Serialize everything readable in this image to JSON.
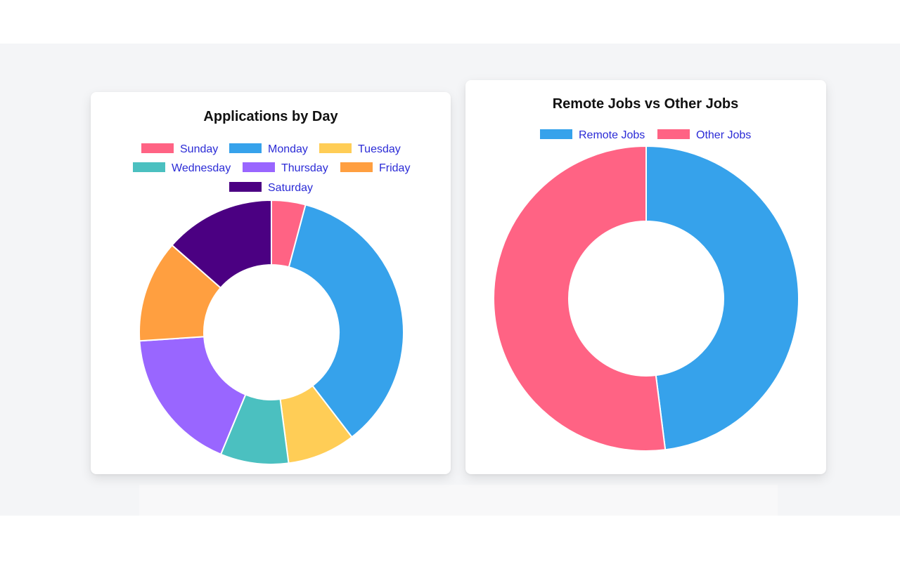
{
  "charts": [
    {
      "title": "Applications by Day",
      "legend": [
        {
          "label": "Sunday",
          "color": "#ff6384"
        },
        {
          "label": "Monday",
          "color": "#36a2eb"
        },
        {
          "label": "Tuesday",
          "color": "#ffcd56"
        },
        {
          "label": "Wednesday",
          "color": "#4bc0c0"
        },
        {
          "label": "Thursday",
          "color": "#9966ff"
        },
        {
          "label": "Friday",
          "color": "#ff9f40"
        },
        {
          "label": "Saturday",
          "color": "#4b0082"
        }
      ]
    },
    {
      "title": "Remote Jobs vs Other Jobs",
      "legend": [
        {
          "label": "Remote Jobs",
          "color": "#36a2eb"
        },
        {
          "label": "Other Jobs",
          "color": "#ff6384"
        }
      ]
    }
  ],
  "chart_data": [
    {
      "type": "pie",
      "doughnut": true,
      "title": "Applications by Day",
      "categories": [
        "Sunday",
        "Monday",
        "Tuesday",
        "Wednesday",
        "Thursday",
        "Friday",
        "Saturday"
      ],
      "values": [
        4,
        34,
        8,
        8,
        17,
        12,
        13
      ],
      "colors": [
        "#ff6384",
        "#36a2eb",
        "#ffcd56",
        "#4bc0c0",
        "#9966ff",
        "#ff9f40",
        "#4b0082"
      ],
      "legend_position": "top"
    },
    {
      "type": "pie",
      "doughnut": true,
      "title": "Remote Jobs vs Other Jobs",
      "categories": [
        "Remote Jobs",
        "Other Jobs"
      ],
      "values": [
        48,
        52
      ],
      "colors": [
        "#36a2eb",
        "#ff6384"
      ],
      "legend_position": "top"
    }
  ]
}
